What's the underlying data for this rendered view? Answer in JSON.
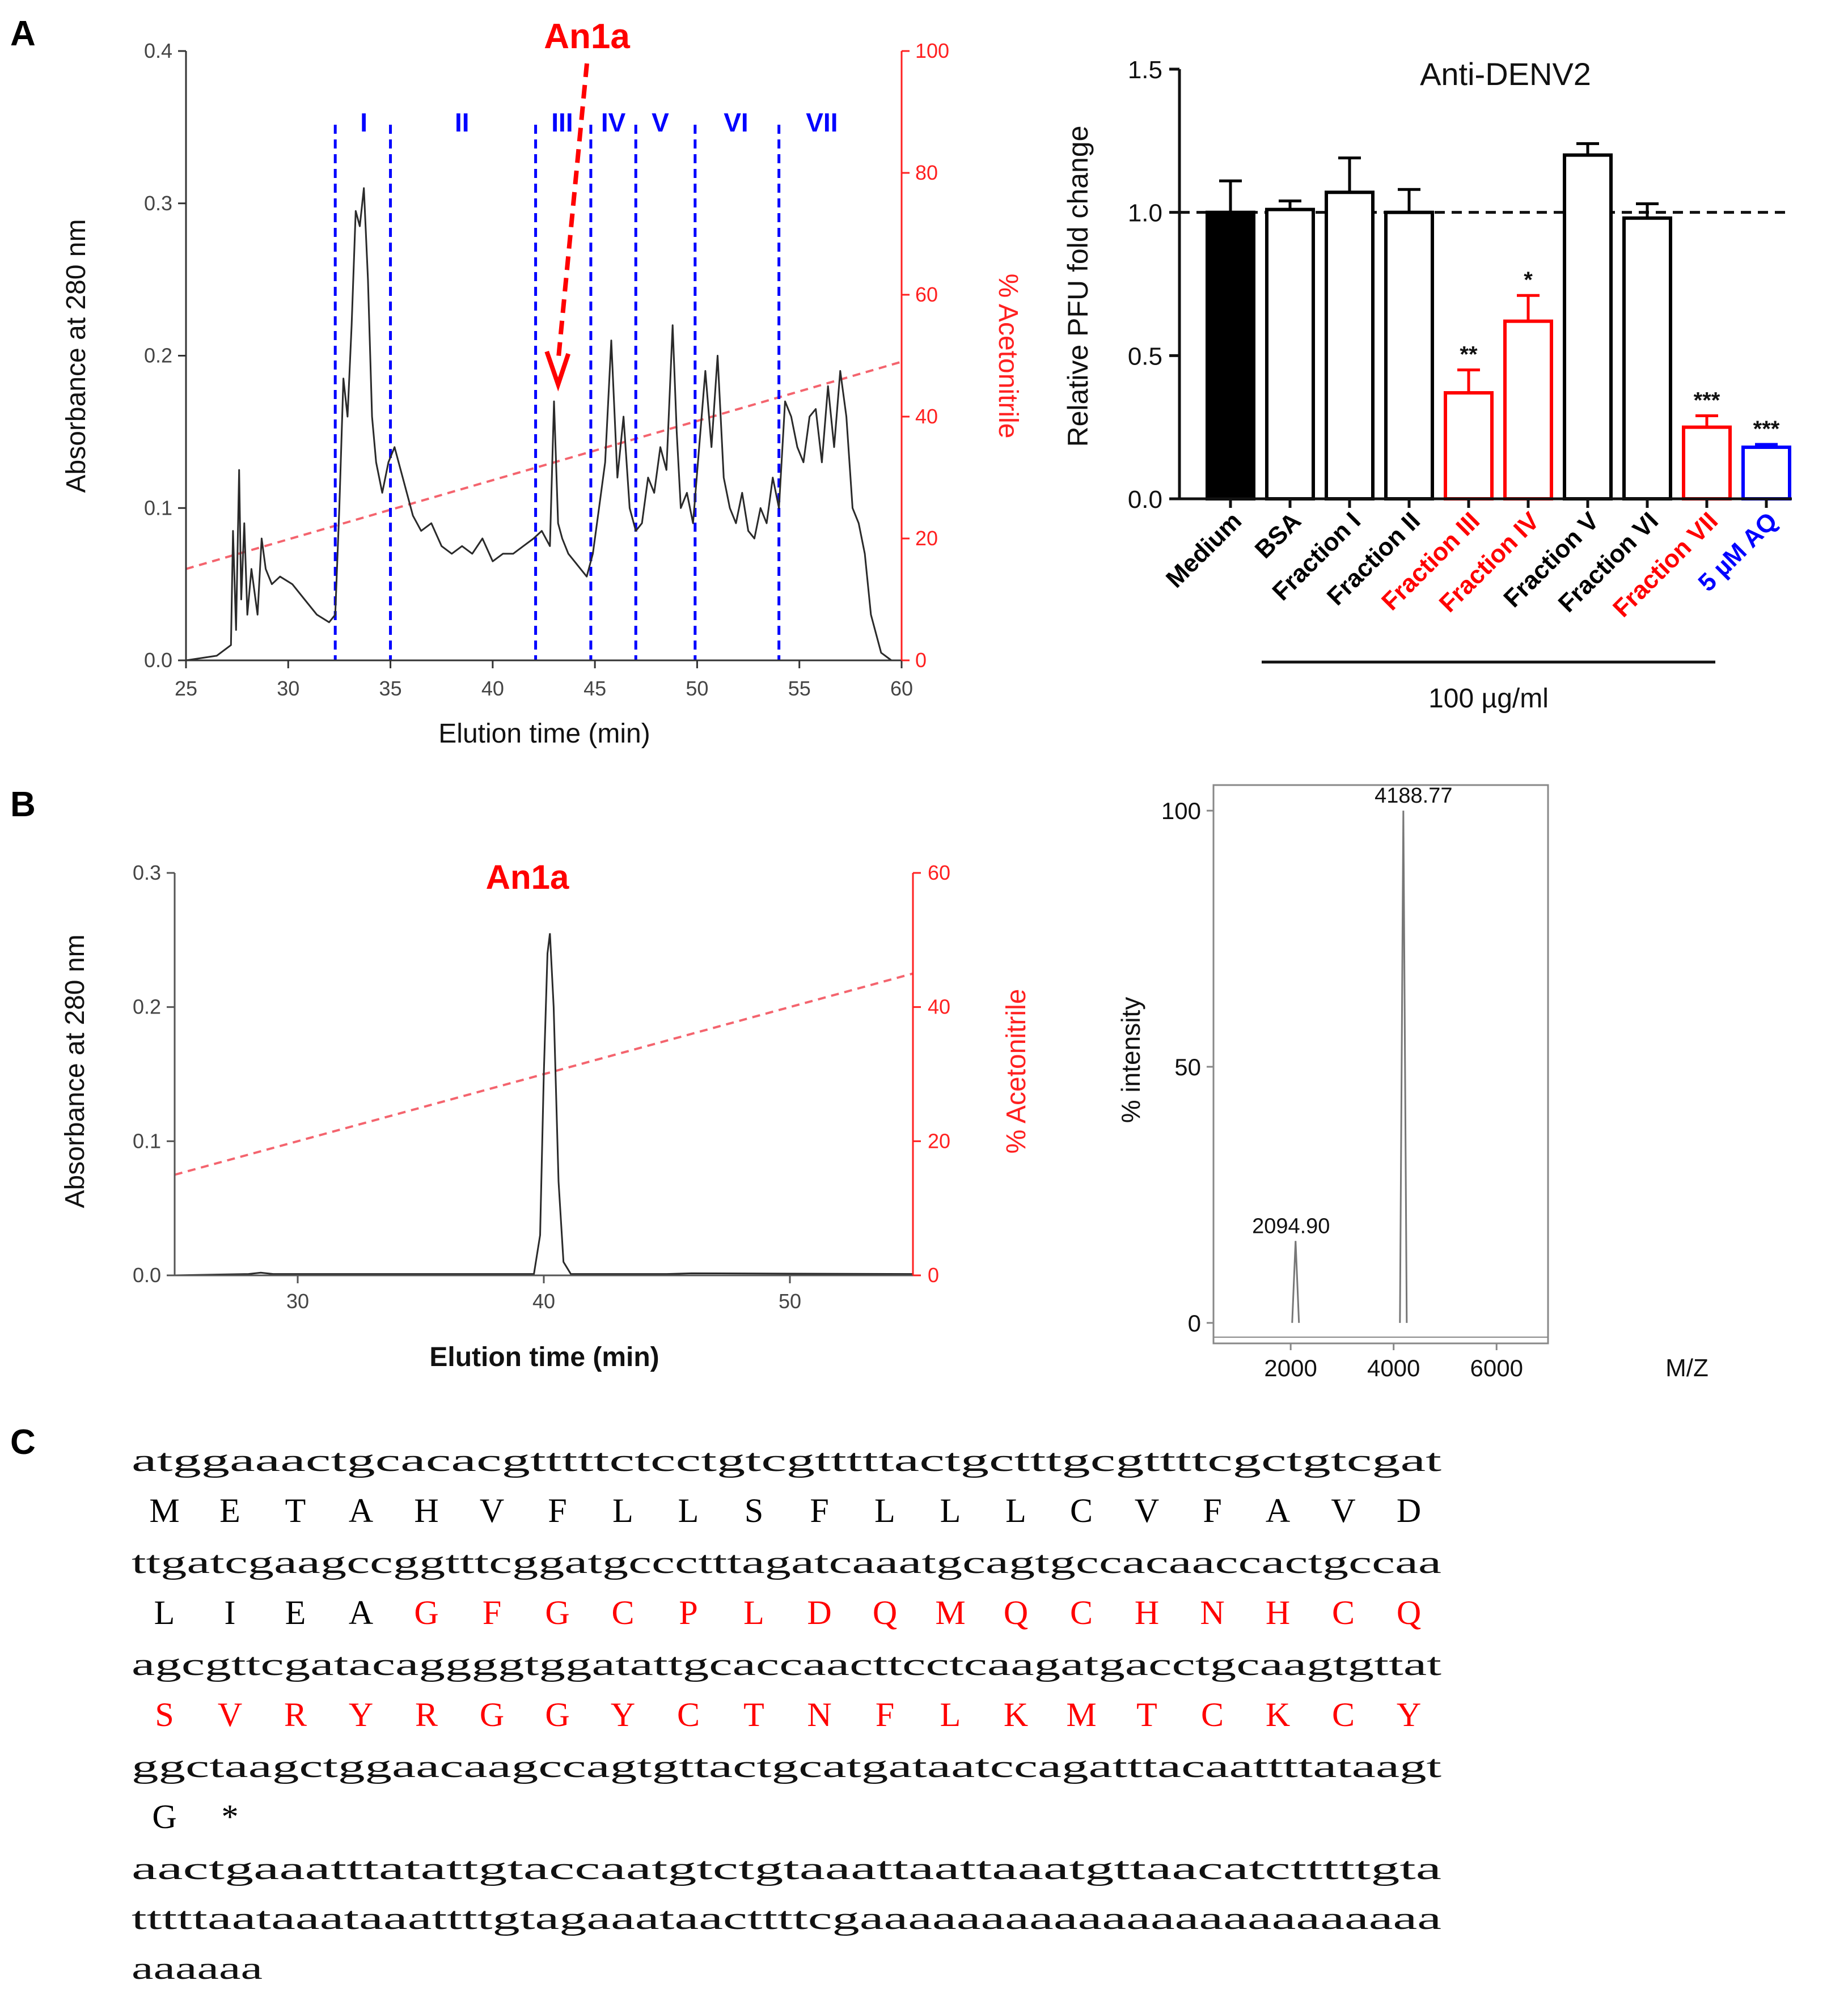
{
  "panels": {
    "a": "A",
    "b": "B",
    "c": "C"
  },
  "colors": {
    "black": "#000000",
    "red": "#ff0000",
    "blue": "#0000ff",
    "grad": "#f4646e",
    "gray": "#555555"
  },
  "chart_data": [
    {
      "id": "a1",
      "type": "line",
      "title": "",
      "xlabel": "Elution time (min)",
      "ylabel": "Absorbance at 280 nm",
      "y2label": "% Acetonitrile",
      "xlim": [
        25,
        60
      ],
      "ylim": [
        0,
        0.4
      ],
      "y2lim": [
        0,
        100
      ],
      "xticks": [
        "25",
        "30",
        "35",
        "40",
        "45",
        "50",
        "55",
        "60"
      ],
      "yticks": [
        "0.0",
        "0.1",
        "0.2",
        "0.3",
        "0.4"
      ],
      "y2ticks": [
        "0",
        "20",
        "40",
        "60",
        "80",
        "100"
      ],
      "series": [
        {
          "name": "absorbance",
          "x": [
            25.0,
            26.5,
            27.2,
            27.3,
            27.45,
            27.6,
            27.7,
            27.85,
            28.0,
            28.2,
            28.5,
            28.7,
            28.9,
            29.2,
            29.6,
            30.2,
            30.8,
            31.4,
            32.0,
            32.3,
            32.5,
            32.7,
            32.9,
            33.1,
            33.3,
            33.5,
            33.7,
            33.9,
            34.1,
            34.3,
            34.6,
            34.9,
            35.2,
            35.5,
            35.8,
            36.1,
            36.5,
            37.0,
            37.5,
            38.0,
            38.5,
            39.0,
            39.5,
            40.0,
            40.5,
            41.0,
            41.5,
            42.0,
            42.4,
            42.8,
            43.0,
            43.2,
            43.4,
            43.7,
            44.0,
            44.3,
            44.6,
            44.9,
            45.2,
            45.5,
            45.8,
            46.1,
            46.4,
            46.7,
            47.0,
            47.3,
            47.6,
            47.9,
            48.2,
            48.5,
            48.8,
            49.0,
            49.2,
            49.5,
            49.8,
            50.1,
            50.4,
            50.7,
            51.0,
            51.3,
            51.6,
            51.9,
            52.2,
            52.5,
            52.8,
            53.1,
            53.4,
            53.7,
            54.0,
            54.3,
            54.6,
            54.9,
            55.2,
            55.5,
            55.8,
            56.1,
            56.4,
            56.7,
            57.0,
            57.3,
            57.6,
            57.9,
            58.2,
            58.5,
            59.0,
            59.5,
            60.0
          ],
          "y": [
            0.0,
            0.003,
            0.01,
            0.085,
            0.02,
            0.125,
            0.04,
            0.09,
            0.03,
            0.06,
            0.03,
            0.08,
            0.06,
            0.05,
            0.055,
            0.05,
            0.04,
            0.03,
            0.025,
            0.03,
            0.1,
            0.185,
            0.16,
            0.22,
            0.295,
            0.285,
            0.31,
            0.25,
            0.16,
            0.13,
            0.11,
            0.13,
            0.14,
            0.125,
            0.11,
            0.095,
            0.085,
            0.09,
            0.075,
            0.07,
            0.075,
            0.07,
            0.08,
            0.065,
            0.07,
            0.07,
            0.075,
            0.08,
            0.085,
            0.075,
            0.17,
            0.09,
            0.08,
            0.07,
            0.065,
            0.06,
            0.055,
            0.07,
            0.1,
            0.13,
            0.21,
            0.12,
            0.16,
            0.1,
            0.085,
            0.09,
            0.12,
            0.11,
            0.14,
            0.125,
            0.22,
            0.15,
            0.1,
            0.11,
            0.09,
            0.14,
            0.19,
            0.14,
            0.2,
            0.12,
            0.1,
            0.09,
            0.11,
            0.085,
            0.08,
            0.1,
            0.09,
            0.12,
            0.1,
            0.17,
            0.16,
            0.14,
            0.13,
            0.16,
            0.165,
            0.13,
            0.18,
            0.14,
            0.19,
            0.16,
            0.1,
            0.09,
            0.07,
            0.03,
            0.005,
            0.0,
            0.0
          ]
        },
        {
          "name": "% Acetonitrile",
          "x": [
            25,
            60
          ],
          "y": [
            15,
            49
          ]
        }
      ],
      "dividers": [
        32.3,
        35.0,
        42.1,
        44.8,
        47.0,
        49.9,
        54.0
      ],
      "regions": [
        {
          "label": "I",
          "x": 33.7
        },
        {
          "label": "II",
          "x": 38.5
        },
        {
          "label": "III",
          "x": 43.4
        },
        {
          "label": "IV",
          "x": 45.9
        },
        {
          "label": "V",
          "x": 48.2
        },
        {
          "label": "VI",
          "x": 51.9
        },
        {
          "label": "VII",
          "x": 56.1
        }
      ],
      "annotation": {
        "label": "An1a",
        "peak_x": 43.2
      }
    },
    {
      "id": "a2",
      "type": "bar",
      "title": "Anti-DENV2",
      "ylabel": "Relative PFU fold change",
      "ylim": [
        0,
        1.5
      ],
      "yticks": [
        "0.0",
        "0.5",
        "1.0",
        "1.5"
      ],
      "reference_line": 1.0,
      "group_label": "100 µg/ml",
      "bars": [
        {
          "label": "Medium",
          "value": 1.0,
          "error": 0.11,
          "sig": "",
          "color": "black",
          "fill": "black"
        },
        {
          "label": "BSA",
          "value": 1.01,
          "error": 0.03,
          "sig": "",
          "color": "black",
          "fill": "white"
        },
        {
          "label": "Fraction I",
          "value": 1.07,
          "error": 0.12,
          "sig": "",
          "color": "black",
          "fill": "white"
        },
        {
          "label": "Fraction II",
          "value": 1.0,
          "error": 0.08,
          "sig": "",
          "color": "black",
          "fill": "white"
        },
        {
          "label": "Fraction III",
          "value": 0.37,
          "error": 0.08,
          "sig": "**",
          "color": "red",
          "fill": "white"
        },
        {
          "label": "Fraction IV",
          "value": 0.62,
          "error": 0.09,
          "sig": "*",
          "color": "red",
          "fill": "white"
        },
        {
          "label": "Fraction V",
          "value": 1.2,
          "error": 0.04,
          "sig": "",
          "color": "black",
          "fill": "white"
        },
        {
          "label": "Fraction VI",
          "value": 0.98,
          "error": 0.05,
          "sig": "",
          "color": "black",
          "fill": "white"
        },
        {
          "label": "Fraction VII",
          "value": 0.25,
          "error": 0.04,
          "sig": "***",
          "color": "red",
          "fill": "white"
        },
        {
          "label": "5 µM AQ",
          "value": 0.18,
          "error": 0.01,
          "sig": "***",
          "color": "blue",
          "fill": "white"
        }
      ]
    },
    {
      "id": "b1",
      "type": "line",
      "title": "An1a",
      "xlabel": "Elution time (min)",
      "ylabel": "Absorbance at 280 nm",
      "y2label": "% Acetonitrile",
      "xlim": [
        25,
        55
      ],
      "ylim": [
        0,
        0.3
      ],
      "y2lim": [
        0,
        60
      ],
      "xticks": [
        "30",
        "40",
        "50"
      ],
      "xtick_values": [
        30,
        40,
        50
      ],
      "yticks": [
        "0.0",
        "0.1",
        "0.2",
        "0.3"
      ],
      "y2ticks": [
        "0",
        "20",
        "40",
        "60"
      ],
      "series": [
        {
          "name": "absorbance",
          "x": [
            25.0,
            28.0,
            28.5,
            29.0,
            32.0,
            39.6,
            39.85,
            40.0,
            40.15,
            40.25,
            40.4,
            40.6,
            40.8,
            41.1,
            45.0,
            46.0,
            55.0
          ],
          "y": [
            0.0,
            0.001,
            0.002,
            0.001,
            0.001,
            0.001,
            0.03,
            0.15,
            0.24,
            0.255,
            0.2,
            0.07,
            0.01,
            0.001,
            0.001,
            0.0015,
            0.001
          ]
        },
        {
          "name": "% Acetonitrile",
          "x": [
            25,
            55
          ],
          "y": [
            15,
            45
          ]
        }
      ]
    },
    {
      "id": "b2",
      "type": "line",
      "title": "",
      "xlabel": "M/Z",
      "ylabel": "% intensity",
      "xlim": [
        500,
        7000
      ],
      "ylim": [
        -4,
        105
      ],
      "xticks": [
        "2000",
        "4000",
        "6000"
      ],
      "xtick_values": [
        2000,
        4000,
        6000
      ],
      "yticks": [
        "0",
        "50",
        "100"
      ],
      "ytick_values": [
        0,
        50,
        100
      ],
      "peaks": [
        {
          "x": 2094.9,
          "y": 16,
          "label": "2094.90"
        },
        {
          "x": 4188.77,
          "y": 100,
          "label": "4188.77"
        }
      ]
    }
  ],
  "sequence": {
    "rows": [
      {
        "nt": "atggaaactgcacacgtttttctcctgtcgtttttactgctttgcgttttcgctgtcgat",
        "aa": [
          [
            "M",
            "black"
          ],
          [
            "E",
            "black"
          ],
          [
            "T",
            "black"
          ],
          [
            "A",
            "black"
          ],
          [
            "H",
            "black"
          ],
          [
            "V",
            "black"
          ],
          [
            "F",
            "black"
          ],
          [
            "L",
            "black"
          ],
          [
            "L",
            "black"
          ],
          [
            "S",
            "black"
          ],
          [
            "F",
            "black"
          ],
          [
            "L",
            "black"
          ],
          [
            "L",
            "black"
          ],
          [
            "L",
            "black"
          ],
          [
            "C",
            "black"
          ],
          [
            "V",
            "black"
          ],
          [
            "F",
            "black"
          ],
          [
            "A",
            "black"
          ],
          [
            "V",
            "black"
          ],
          [
            "D",
            "black"
          ]
        ]
      },
      {
        "nt": "ttgatcgaagccggtttcggatgccctttagatcaaatgcagtgccacaaccactgccaa",
        "aa": [
          [
            "L",
            "black"
          ],
          [
            "I",
            "black"
          ],
          [
            "E",
            "black"
          ],
          [
            "A",
            "black"
          ],
          [
            "G",
            "red"
          ],
          [
            "F",
            "red"
          ],
          [
            "G",
            "red"
          ],
          [
            "C",
            "red"
          ],
          [
            "P",
            "red"
          ],
          [
            "L",
            "red"
          ],
          [
            "D",
            "red"
          ],
          [
            "Q",
            "red"
          ],
          [
            "M",
            "red"
          ],
          [
            "Q",
            "red"
          ],
          [
            "C",
            "red"
          ],
          [
            "H",
            "red"
          ],
          [
            "N",
            "red"
          ],
          [
            "H",
            "red"
          ],
          [
            "C",
            "red"
          ],
          [
            "Q",
            "red"
          ]
        ]
      },
      {
        "nt": "agcgttcgatacaggggtggatattgcaccaacttcctcaagatgacctgcaagtgttat",
        "aa": [
          [
            "S",
            "red"
          ],
          [
            "V",
            "red"
          ],
          [
            "R",
            "red"
          ],
          [
            "Y",
            "red"
          ],
          [
            "R",
            "red"
          ],
          [
            "G",
            "red"
          ],
          [
            "G",
            "red"
          ],
          [
            "Y",
            "red"
          ],
          [
            "C",
            "red"
          ],
          [
            "T",
            "red"
          ],
          [
            "N",
            "red"
          ],
          [
            "F",
            "red"
          ],
          [
            "L",
            "red"
          ],
          [
            "K",
            "red"
          ],
          [
            "M",
            "red"
          ],
          [
            "T",
            "red"
          ],
          [
            "C",
            "red"
          ],
          [
            "K",
            "red"
          ],
          [
            "C",
            "red"
          ],
          [
            "Y",
            "red"
          ]
        ]
      },
      {
        "nt": "ggctaagctggaacaagccagtgttactgcatgataatccagatttacaattttataagt",
        "aa": [
          [
            "G",
            "black"
          ],
          [
            "*",
            "black"
          ]
        ]
      }
    ],
    "tail": [
      "aactgaaatttatattgtaccaatgtctgtaaattaattaaatgttaacatctttttgta",
      "tttttaataaataaattttgtagaaataacttttcgaaaaaaaaaaaaaaaaaaaaaaaa",
      "aaaaaa"
    ]
  }
}
